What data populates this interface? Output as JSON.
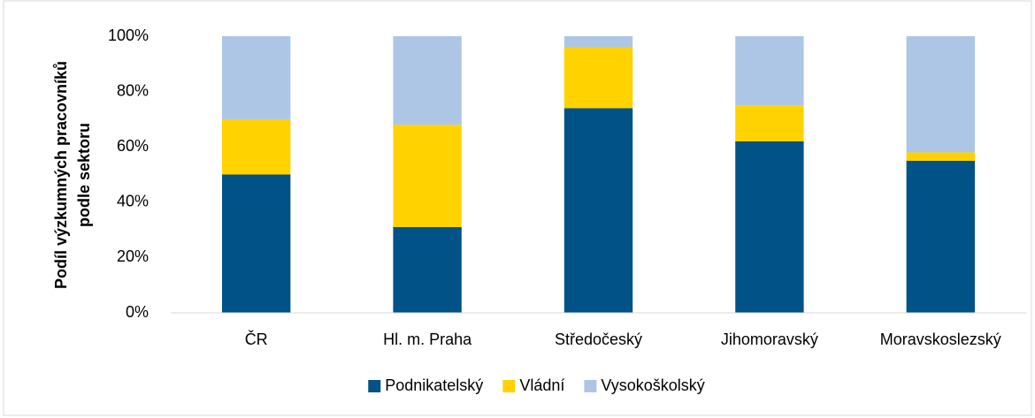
{
  "chart_data": {
    "type": "stacked_bar",
    "y_label": [
      "Podíl výzkumných pracovníků",
      "podle sektoru"
    ],
    "categories": [
      "ČR",
      "Hl. m. Praha",
      "Středočeský",
      "Jihomoravský",
      "Moravskoslezský"
    ],
    "series": [
      {
        "name": "Podnikatelský",
        "color": "#005287",
        "values": [
          50,
          31,
          74,
          62,
          55
        ]
      },
      {
        "name": "Vládní",
        "color": "#ffd200",
        "values": [
          20,
          37,
          22,
          13,
          3
        ]
      },
      {
        "name": "Vysokoškolský",
        "color": "#adc6e6",
        "values": [
          30,
          32,
          4,
          25,
          42
        ]
      }
    ],
    "ylim": [
      0,
      100
    ],
    "yticks": [
      {
        "value": 0,
        "label": "0%"
      },
      {
        "value": 20,
        "label": "20%"
      },
      {
        "value": 40,
        "label": "40%"
      },
      {
        "value": 60,
        "label": "60%"
      },
      {
        "value": 80,
        "label": "80%"
      },
      {
        "value": 100,
        "label": "100%"
      }
    ],
    "grid": false,
    "legend": "bottom"
  }
}
